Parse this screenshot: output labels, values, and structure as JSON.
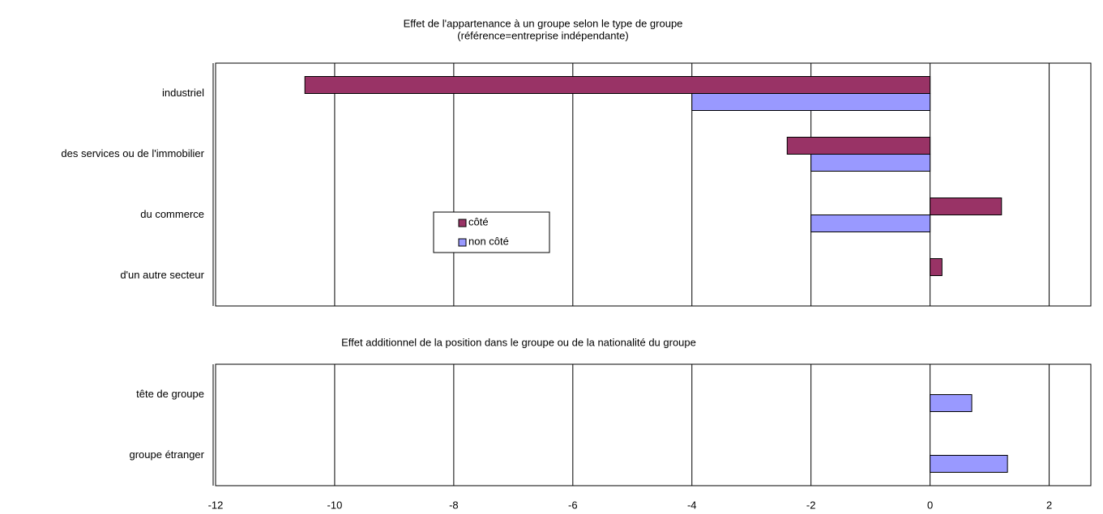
{
  "chart_data": [
    {
      "type": "bar",
      "orientation": "horizontal",
      "title": "Effet de l'appartenance à un groupe selon le type de groupe",
      "subtitle": "(référence=entreprise indépendante)",
      "categories": [
        "industriel",
        "des services ou de l'immobilier",
        "du commerce",
        "d'un autre secteur"
      ],
      "series": [
        {
          "name": "côté",
          "color": "#993366",
          "values": [
            -10.5,
            -2.4,
            1.2,
            0.2
          ]
        },
        {
          "name": "non côté",
          "color": "#9999ff",
          "values": [
            -4,
            -2,
            -2,
            null
          ]
        }
      ],
      "xlim": [
        -12,
        2.7
      ],
      "xticks": [
        -12,
        -10,
        -8,
        -6,
        -4,
        -2,
        0,
        2
      ],
      "grid": true,
      "legend": true
    },
    {
      "type": "bar",
      "orientation": "horizontal",
      "title": "Effet additionnel de la position dans le groupe ou de la nationalité du groupe",
      "categories": [
        "tête de groupe",
        "groupe étranger"
      ],
      "series": [
        {
          "color": "#9999ff",
          "values": [
            0.7,
            1.3
          ]
        }
      ],
      "xlim": [
        -12,
        2.7
      ],
      "xticks": [
        -12,
        -10,
        -8,
        -6,
        -4,
        -2,
        0,
        2
      ],
      "grid": true,
      "tick_labels": true
    }
  ]
}
